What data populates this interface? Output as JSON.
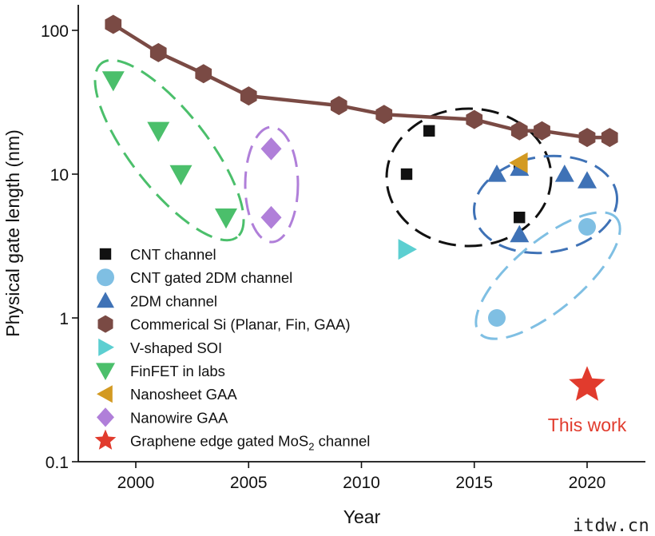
{
  "chart_data": {
    "type": "scatter",
    "title": "",
    "xlabel": "Year",
    "ylabel": "Physical gate length (nm)",
    "xlim": [
      1996,
      2023
    ],
    "ylim": [
      0.1,
      200
    ],
    "yscale": "log",
    "xticks": [
      "2000",
      "2005",
      "2010",
      "2015",
      "2020"
    ],
    "yticks": [
      "0.1",
      "1",
      "10",
      "100"
    ],
    "grid": false,
    "legend_position": "bottom-left",
    "series": [
      {
        "name": "CNT channel",
        "marker": "square",
        "color": "#111111",
        "points": [
          [
            2012,
            10
          ],
          [
            2013,
            20
          ],
          [
            2017,
            11
          ],
          [
            2017,
            5
          ]
        ]
      },
      {
        "name": "CNT gated 2DM channel",
        "marker": "circle",
        "color": "#7fbfe3",
        "points": [
          [
            2016,
            1.0
          ],
          [
            2020,
            4.3
          ]
        ]
      },
      {
        "name": "2DM channel",
        "marker": "triangle-up",
        "color": "#3f72b6",
        "points": [
          [
            2016,
            10
          ],
          [
            2017,
            11
          ],
          [
            2019,
            10
          ],
          [
            2020,
            9
          ],
          [
            2017,
            3.8
          ]
        ]
      },
      {
        "name": "Commerical Si (Planar, Fin, GAA)",
        "marker": "hexagon",
        "color": "#7a4a44",
        "line": true,
        "points": [
          [
            1999,
            110
          ],
          [
            2001,
            70
          ],
          [
            2003,
            50
          ],
          [
            2005,
            35
          ],
          [
            2009,
            30
          ],
          [
            2011,
            26
          ],
          [
            2015,
            24
          ],
          [
            2017,
            20
          ],
          [
            2018,
            20
          ],
          [
            2020,
            18
          ],
          [
            2021,
            18
          ]
        ]
      },
      {
        "name": "V-shaped SOI",
        "marker": "triangle-right",
        "color": "#5ccfd1",
        "points": [
          [
            2012,
            3.0
          ]
        ]
      },
      {
        "name": "FinFET in labs",
        "marker": "triangle-down",
        "color": "#4bbf6b",
        "points": [
          [
            1999,
            45
          ],
          [
            2001,
            20
          ],
          [
            2002,
            10
          ],
          [
            2004,
            5
          ]
        ]
      },
      {
        "name": "Nanosheet GAA",
        "marker": "triangle-left",
        "color": "#d39a22",
        "points": [
          [
            2017,
            12
          ]
        ]
      },
      {
        "name": "Nanowire GAA",
        "marker": "diamond",
        "color": "#b07fd9",
        "points": [
          [
            2006,
            15
          ],
          [
            2006,
            5
          ]
        ]
      },
      {
        "name": "Graphene edge gated MoS2 channel",
        "marker": "star",
        "color": "#e13b2d",
        "points": [
          [
            2020,
            0.34
          ]
        ]
      }
    ],
    "groupings": [
      {
        "series": "FinFET in labs",
        "color": "#4bbf6b"
      },
      {
        "series": "Nanowire GAA",
        "color": "#b07fd9"
      },
      {
        "series": "CNT channel",
        "color": "#111111"
      },
      {
        "series": "2DM channel",
        "color": "#3f72b6"
      },
      {
        "series": "CNT gated 2DM channel",
        "color": "#7fbfe3"
      }
    ],
    "annotations": [
      {
        "text": "This work",
        "color": "#e13b2d"
      }
    ]
  },
  "legend": [
    {
      "label": "CNT channel"
    },
    {
      "label": "CNT gated 2DM channel"
    },
    {
      "label": "2DM channel"
    },
    {
      "label": "Commerical Si (Planar, Fin, GAA)"
    },
    {
      "label": "V-shaped SOI"
    },
    {
      "label": "FinFET in labs"
    },
    {
      "label": "Nanosheet GAA"
    },
    {
      "label": "Nanowire GAA"
    },
    {
      "label": "Graphene edge gated MoS",
      "sub": "2",
      "tail": " channel"
    }
  ],
  "watermark": "itdw.cn"
}
